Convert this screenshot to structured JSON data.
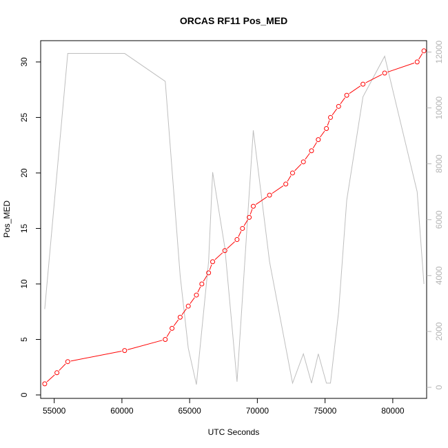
{
  "chart_data": {
    "type": "line",
    "title": "ORCAS RF11 Pos_MED",
    "xlabel": "UTC Seconds",
    "ylabel": "Pos_MED",
    "xlim": [
      54000,
      82500
    ],
    "ylim": [
      0,
      32
    ],
    "y2lim": [
      0,
      12000
    ],
    "x_ticks": [
      "55000",
      "60000",
      "65000",
      "70000",
      "75000",
      "80000"
    ],
    "y_ticks": [
      "0",
      "5",
      "10",
      "15",
      "20",
      "25",
      "30"
    ],
    "y2_ticks": [
      "0",
      "2000",
      "4000",
      "6000",
      "8000",
      "10000",
      "12000"
    ],
    "grid": false,
    "series": [
      {
        "axis": "left",
        "style": "points-with-lines",
        "color": "#ff0000",
        "x": [
          54300,
          55200,
          56000,
          60200,
          63200,
          63700,
          64300,
          64900,
          65500,
          65900,
          66400,
          66700,
          67600,
          68500,
          68900,
          69400,
          69700,
          70900,
          72100,
          72600,
          73400,
          74000,
          74500,
          75100,
          75400,
          76000,
          76600,
          77800,
          79400,
          81800,
          82300
        ],
        "y": [
          1,
          2,
          3,
          4,
          5,
          6,
          7,
          8,
          9,
          10,
          11,
          12,
          13,
          14,
          15,
          16,
          17,
          18,
          19,
          20,
          21,
          22,
          23,
          24,
          25,
          26,
          27,
          28,
          29,
          30,
          31
        ]
      },
      {
        "axis": "right",
        "style": "line",
        "color": "#bebebe",
        "x": [
          54300,
          56000,
          60200,
          63200,
          64300,
          64900,
          65500,
          66400,
          66700,
          67600,
          68500,
          69700,
          70900,
          72600,
          73400,
          74000,
          74500,
          75100,
          75400,
          76000,
          76600,
          77800,
          79400,
          81800,
          82300
        ],
        "y": [
          2800,
          11950,
          11950,
          10950,
          4000,
          1400,
          100,
          4500,
          7700,
          5000,
          200,
          9200,
          4500,
          150,
          1200,
          150,
          1200,
          150,
          150,
          2700,
          6700,
          10400,
          11850,
          7000,
          3700
        ]
      }
    ]
  }
}
